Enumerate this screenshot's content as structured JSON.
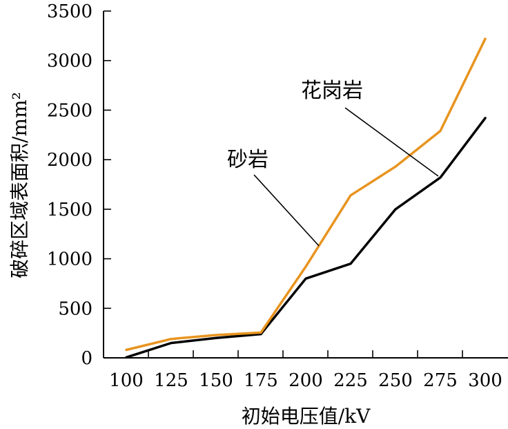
{
  "chart_data": {
    "type": "line",
    "title": "",
    "xlabel": "初始电压值/kV",
    "ylabel": "破碎区域表面积/mm²",
    "categories": [
      "100",
      "125",
      "150",
      "175",
      "200",
      "225",
      "250",
      "275",
      "300"
    ],
    "x": [
      100,
      125,
      150,
      175,
      200,
      225,
      250,
      275,
      300
    ],
    "xlim": [
      100,
      300
    ],
    "ylim": [
      0,
      3500
    ],
    "yticks": [
      0,
      500,
      1000,
      1500,
      2000,
      2500,
      3000,
      3500
    ],
    "grid": false,
    "series": [
      {
        "name": "花岗岩",
        "color": "#000000",
        "values": [
          5,
          150,
          200,
          240,
          800,
          950,
          1500,
          1820,
          2420
        ]
      },
      {
        "name": "砂岩",
        "color": "#E8941F",
        "values": [
          80,
          190,
          230,
          255,
          920,
          1640,
          1930,
          2290,
          3220
        ]
      }
    ]
  }
}
